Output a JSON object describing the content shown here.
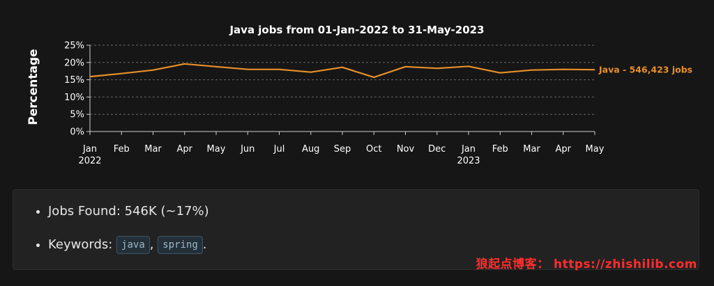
{
  "chart_data": {
    "type": "line",
    "title": "Java jobs from 01-Jan-2022 to 31-May-2023",
    "xlabel": "",
    "ylabel": "Percentage",
    "x_ticks": [
      {
        "label": "Jan",
        "year": "2022"
      },
      {
        "label": "Feb",
        "year": ""
      },
      {
        "label": "Mar",
        "year": ""
      },
      {
        "label": "Apr",
        "year": ""
      },
      {
        "label": "May",
        "year": ""
      },
      {
        "label": "Jun",
        "year": ""
      },
      {
        "label": "Jul",
        "year": ""
      },
      {
        "label": "Aug",
        "year": ""
      },
      {
        "label": "Sep",
        "year": ""
      },
      {
        "label": "Oct",
        "year": ""
      },
      {
        "label": "Nov",
        "year": ""
      },
      {
        "label": "Dec",
        "year": ""
      },
      {
        "label": "Jan",
        "year": "2023"
      },
      {
        "label": "Feb",
        "year": ""
      },
      {
        "label": "Mar",
        "year": ""
      },
      {
        "label": "Apr",
        "year": ""
      },
      {
        "label": "May",
        "year": ""
      }
    ],
    "y_ticks": [
      "0%",
      "5%",
      "10%",
      "15%",
      "20%",
      "25%"
    ],
    "ylim": [
      0,
      25
    ],
    "grid": true,
    "series": [
      {
        "name": "Java - 546,423 jobs",
        "color": "#e8902a",
        "values": [
          15.9,
          16.8,
          17.8,
          19.6,
          18.8,
          18.0,
          18.0,
          17.2,
          18.6,
          15.7,
          18.8,
          18.3,
          18.9,
          17.0,
          17.8,
          18.0,
          17.9
        ]
      }
    ]
  },
  "info": {
    "jobs_found_label": "Jobs Found: 546K (~17%)",
    "keywords_label": "Keywords: ",
    "keywords": [
      "java",
      "spring"
    ],
    "separator": ", ",
    "terminator": "."
  },
  "watermark": "狼起点博客： https://zhishilib.com"
}
